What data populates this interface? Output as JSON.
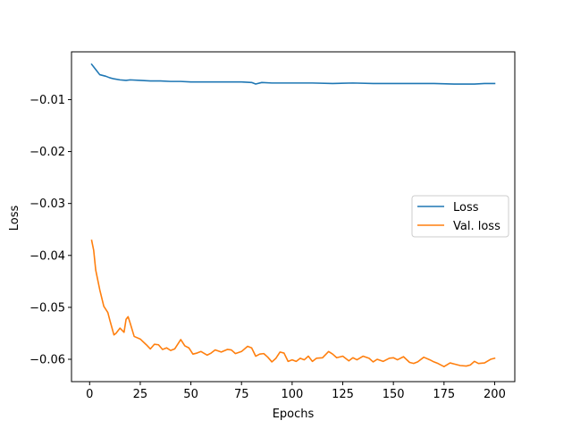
{
  "chart_data": {
    "type": "line",
    "title": "",
    "xlabel": "Epochs",
    "ylabel": "Loss",
    "xlim": [
      -8.95,
      209.95
    ],
    "ylim": [
      -0.0643,
      -0.0008
    ],
    "xticks": [
      0,
      25,
      50,
      75,
      100,
      125,
      150,
      175,
      200
    ],
    "xtick_labels": [
      "0",
      "25",
      "50",
      "75",
      "100",
      "125",
      "150",
      "175",
      "200"
    ],
    "yticks": [
      -0.01,
      -0.02,
      -0.03,
      -0.04,
      -0.05,
      -0.06
    ],
    "ytick_labels": [
      "−0.01",
      "−0.02",
      "−0.03",
      "−0.04",
      "−0.05",
      "−0.06"
    ],
    "grid": false,
    "legend_position": "center-right",
    "series": [
      {
        "name": "Loss",
        "color": "#1f77b4",
        "x": [
          1,
          3,
          5,
          8,
          10,
          12,
          15,
          18,
          20,
          25,
          30,
          35,
          40,
          45,
          50,
          55,
          60,
          65,
          70,
          75,
          80,
          82,
          85,
          90,
          95,
          100,
          110,
          120,
          130,
          140,
          150,
          160,
          170,
          180,
          190,
          195,
          200
        ],
        "y": [
          -0.0032,
          -0.0042,
          -0.0052,
          -0.0055,
          -0.0058,
          -0.006,
          -0.0062,
          -0.0063,
          -0.0062,
          -0.0063,
          -0.0064,
          -0.0064,
          -0.0065,
          -0.0065,
          -0.0066,
          -0.0066,
          -0.0066,
          -0.0066,
          -0.0066,
          -0.0066,
          -0.0067,
          -0.007,
          -0.0067,
          -0.0068,
          -0.0068,
          -0.0068,
          -0.0068,
          -0.0069,
          -0.0068,
          -0.0069,
          -0.0069,
          -0.0069,
          -0.0069,
          -0.007,
          -0.007,
          -0.0069,
          -0.0069
        ]
      },
      {
        "name": "Val. loss",
        "color": "#ff7f0e",
        "x": [
          1,
          2,
          3,
          5,
          7,
          9,
          10,
          12,
          13,
          15,
          17,
          18,
          19,
          20,
          22,
          25,
          28,
          30,
          32,
          34,
          36,
          38,
          40,
          42,
          44,
          45,
          47,
          49,
          51,
          53,
          55,
          58,
          60,
          62,
          65,
          68,
          70,
          72,
          75,
          78,
          80,
          82,
          84,
          86,
          88,
          90,
          92,
          94,
          96,
          98,
          100,
          102,
          104,
          106,
          108,
          110,
          112,
          115,
          118,
          120,
          122,
          125,
          128,
          130,
          132,
          135,
          138,
          140,
          142,
          145,
          148,
          150,
          152,
          155,
          158,
          160,
          162,
          165,
          168,
          170,
          172,
          175,
          178,
          180,
          183,
          186,
          188,
          190,
          192,
          195,
          198,
          200
        ],
        "y": [
          -0.0371,
          -0.039,
          -0.0428,
          -0.0466,
          -0.0498,
          -0.051,
          -0.0525,
          -0.0553,
          -0.055,
          -0.054,
          -0.0548,
          -0.0523,
          -0.0518,
          -0.053,
          -0.0556,
          -0.0561,
          -0.0572,
          -0.058,
          -0.0571,
          -0.0572,
          -0.0581,
          -0.0578,
          -0.0583,
          -0.058,
          -0.0568,
          -0.0562,
          -0.0574,
          -0.0578,
          -0.059,
          -0.0588,
          -0.0585,
          -0.0592,
          -0.0588,
          -0.0582,
          -0.0586,
          -0.0581,
          -0.0582,
          -0.0589,
          -0.0585,
          -0.0575,
          -0.0578,
          -0.0594,
          -0.059,
          -0.0589,
          -0.0596,
          -0.0605,
          -0.0598,
          -0.0586,
          -0.0588,
          -0.0604,
          -0.0601,
          -0.0604,
          -0.0598,
          -0.0601,
          -0.0594,
          -0.0604,
          -0.0598,
          -0.0597,
          -0.0585,
          -0.059,
          -0.0597,
          -0.0594,
          -0.0603,
          -0.0597,
          -0.0601,
          -0.0594,
          -0.0598,
          -0.0605,
          -0.06,
          -0.0604,
          -0.0598,
          -0.0597,
          -0.0601,
          -0.0595,
          -0.0606,
          -0.0608,
          -0.0605,
          -0.0596,
          -0.0601,
          -0.0605,
          -0.0608,
          -0.0614,
          -0.0607,
          -0.0609,
          -0.0612,
          -0.0613,
          -0.0611,
          -0.0604,
          -0.0608,
          -0.0607,
          -0.06,
          -0.0598
        ]
      }
    ]
  }
}
